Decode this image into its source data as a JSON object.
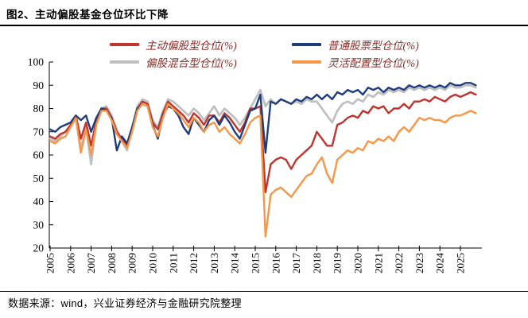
{
  "header": {
    "title": "图2、主动偏股基金仓位环比下降"
  },
  "footer": {
    "source": "数据来源：wind，兴业证券经济与金融研究院整理"
  },
  "colors": {
    "active_equity_red": "#C0342F",
    "common_stock_blue": "#1F3D7C",
    "hybrid_gray": "#BFBFBF",
    "flexible_orange": "#F79646",
    "legend_text": "#8C2A25",
    "axis": "#000000"
  },
  "legend": {
    "items": [
      {
        "label": "主动偏股型仓位(%)",
        "color": "#C0342F"
      },
      {
        "label": "普通股票型仓位(%)",
        "color": "#1F3D7C"
      },
      {
        "label": "偏股混合型仓位(%)",
        "color": "#BFBFBF"
      },
      {
        "label": "灵活配置型仓位(%)",
        "color": "#F79646"
      }
    ]
  },
  "chart_data": {
    "type": "line",
    "title": "主动偏股基金仓位(%)",
    "xlabel": "",
    "ylabel": "",
    "x_unit": "quarter",
    "x_range": "2005Q1-2025Q4",
    "x_tick_labels": [
      "2005",
      "2006",
      "2007",
      "2008",
      "2009",
      "2010",
      "2011",
      "2012",
      "2013",
      "2014",
      "2015",
      "2016",
      "2017",
      "2018",
      "2019",
      "2020",
      "2021",
      "2022",
      "2023",
      "2024",
      "2025"
    ],
    "y_ticks": [
      20,
      30,
      40,
      50,
      60,
      70,
      80,
      90,
      100
    ],
    "ylim": [
      20,
      100
    ],
    "grid": false,
    "legend_position": "top",
    "series": [
      {
        "name": "主动偏股型仓位(%)",
        "color": "#C0342F",
        "values": [
          68,
          67,
          69,
          70,
          73,
          77,
          67,
          74,
          64,
          75,
          80,
          80,
          76,
          70,
          67,
          64,
          71,
          80,
          83,
          82,
          74,
          71,
          78,
          83,
          81,
          79,
          77,
          74,
          78,
          76,
          73,
          77,
          77,
          74,
          78,
          76,
          73,
          70,
          74,
          80,
          80,
          81,
          44,
          56,
          58,
          59,
          58,
          54,
          58,
          60,
          62,
          64,
          70,
          67,
          64,
          64,
          73,
          74,
          76,
          77,
          76,
          79,
          78,
          81,
          80,
          81,
          78,
          80,
          80,
          82,
          80,
          83,
          83,
          84,
          83,
          85,
          84,
          83,
          85,
          86,
          85,
          86,
          87,
          86
        ]
      },
      {
        "name": "普通股票型仓位(%)",
        "color": "#1F3D7C",
        "values": [
          71,
          70,
          72,
          73,
          74,
          77,
          75,
          77,
          70,
          76,
          80,
          79,
          76,
          62,
          68,
          65,
          72,
          80,
          82,
          81,
          73,
          67,
          77,
          81,
          80,
          77,
          72,
          69,
          76,
          73,
          70,
          75,
          77,
          73,
          77,
          74,
          70,
          67,
          73,
          79,
          80,
          86,
          61,
          83,
          82,
          84,
          83,
          82,
          84,
          83,
          85,
          84,
          86,
          84,
          86,
          84,
          87,
          86,
          88,
          87,
          88,
          86,
          89,
          88,
          89,
          87,
          89,
          88,
          89,
          88,
          90,
          89,
          90,
          89,
          90,
          89,
          90,
          89,
          91,
          90,
          90,
          91,
          91,
          90
        ]
      },
      {
        "name": "偏股混合型仓位(%)",
        "color": "#BFBFBF",
        "values": [
          67,
          66,
          68,
          70,
          72,
          76,
          63,
          72,
          56,
          74,
          80,
          81,
          77,
          71,
          66,
          62,
          72,
          81,
          84,
          83,
          75,
          72,
          79,
          84,
          83,
          81,
          79,
          77,
          80,
          78,
          75,
          78,
          81,
          77,
          80,
          78,
          76,
          73,
          76,
          80,
          84,
          88,
          81,
          84,
          82,
          84,
          83,
          82,
          83,
          82,
          84,
          83,
          83,
          80,
          77,
          74,
          79,
          82,
          83,
          82,
          84,
          83,
          86,
          85,
          87,
          86,
          88,
          87,
          88,
          87,
          89,
          88,
          89,
          88,
          89,
          88,
          89,
          88,
          90,
          89,
          89,
          90,
          90,
          89
        ]
      },
      {
        "name": "灵活配置型仓位(%)",
        "color": "#F79646",
        "values": [
          66,
          65,
          67,
          68,
          72,
          76,
          61,
          71,
          60,
          73,
          79,
          79,
          75,
          69,
          66,
          63,
          70,
          79,
          82,
          81,
          72,
          68,
          76,
          82,
          80,
          78,
          75,
          72,
          76,
          74,
          70,
          73,
          74,
          70,
          72,
          69,
          67,
          65,
          69,
          74,
          76,
          77,
          25,
          43,
          45,
          46,
          44,
          42,
          45,
          48,
          51,
          52,
          56,
          59,
          52,
          48,
          58,
          60,
          62,
          61,
          63,
          62,
          66,
          65,
          67,
          66,
          68,
          66,
          70,
          72,
          70,
          73,
          76,
          75,
          76,
          75,
          75,
          74,
          76,
          77,
          77,
          78,
          79,
          78
        ]
      }
    ]
  }
}
